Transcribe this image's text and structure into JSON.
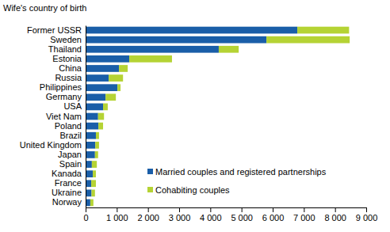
{
  "chart_data": {
    "type": "bar",
    "orientation": "horizontal",
    "stacked": true,
    "y_label": "Wife's country of birth",
    "categories": [
      "Former USSR",
      "Sweden",
      "Thailand",
      "Estonia",
      "China",
      "Russia",
      "Philippines",
      "Germany",
      "USA",
      "Viet Nam",
      "Poland",
      "Brazil",
      "United Kingdom",
      "Japan",
      "Spain",
      "Kanada",
      "France",
      "Ukraine",
      "Norway"
    ],
    "series": [
      {
        "name": "Married couples and registered partnerships",
        "color": "#1a5ea8",
        "values": [
          6790,
          5800,
          4270,
          1400,
          1070,
          740,
          1020,
          640,
          560,
          400,
          410,
          330,
          310,
          300,
          200,
          230,
          180,
          190,
          150
        ]
      },
      {
        "name": "Cohabiting couples",
        "color": "#b5d334",
        "values": [
          1660,
          2670,
          640,
          1370,
          280,
          460,
          100,
          330,
          150,
          190,
          150,
          100,
          120,
          100,
          160,
          100,
          150,
          110,
          100
        ]
      }
    ],
    "xlim": [
      0,
      9000
    ],
    "xticks": [
      0,
      {
        "value": 1000,
        "label": "1 000"
      },
      {
        "value": 2000,
        "label": "2 000"
      },
      {
        "value": 3000,
        "label": "3 000"
      },
      {
        "value": 4000,
        "label": "4 000"
      },
      {
        "value": 5000,
        "label": "5 000"
      },
      {
        "value": 6000,
        "label": "6 000"
      },
      {
        "value": 7000,
        "label": "7 000"
      },
      {
        "value": 8000,
        "label": "8 000"
      },
      {
        "value": 9000,
        "label": "9 000"
      }
    ],
    "legend": "lower right",
    "grid": false
  }
}
